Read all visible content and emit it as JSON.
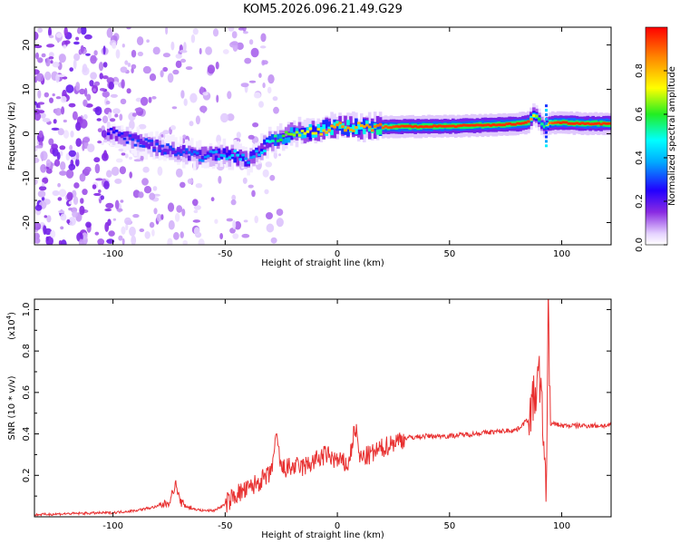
{
  "figure": {
    "title": "KOM5.2026.096.21.49.G29"
  },
  "chart_data": [
    {
      "type": "heatmap",
      "title": "KOM5.2026.096.21.49.G29",
      "xlabel": "Height of straight line (km)",
      "ylabel": "Frequency (Hz)",
      "xlim": [
        -135,
        122
      ],
      "ylim": [
        -25,
        24
      ],
      "x_ticks": [
        -100,
        -50,
        0,
        50,
        100
      ],
      "y_ticks": [
        -20,
        -10,
        0,
        10,
        20
      ],
      "colorbar": {
        "label": "Normalized spectral amplitude",
        "range": [
          0,
          1
        ],
        "ticks": [
          0.0,
          0.2,
          0.4,
          0.6,
          0.8
        ]
      },
      "ridge": {
        "description": "frequency of peak amplitude vs height",
        "x": [
          -100,
          -90,
          -80,
          -70,
          -60,
          -50,
          -45,
          -40,
          -35,
          -30,
          -25,
          -20,
          -10,
          0,
          10,
          20,
          30,
          50,
          70,
          80,
          85,
          88,
          90,
          92,
          95,
          100,
          110,
          122
        ],
        "y": [
          0,
          -1.5,
          -3,
          -4,
          -5,
          -4.5,
          -5,
          -6,
          -4,
          -2,
          -1,
          0,
          0.8,
          1.5,
          1.4,
          1.5,
          1.6,
          1.7,
          2.0,
          2.2,
          2.5,
          4.5,
          3.2,
          1.5,
          2.5,
          2.5,
          2.3,
          2.3
        ],
        "amplitude": [
          0.25,
          0.3,
          0.3,
          0.3,
          0.35,
          0.4,
          0.45,
          0.35,
          0.4,
          0.5,
          0.6,
          0.65,
          0.75,
          0.85,
          0.8,
          0.9,
          0.95,
          0.95,
          0.95,
          0.95,
          0.95,
          0.7,
          0.6,
          0.5,
          0.9,
          0.95,
          0.95,
          0.95
        ]
      }
    },
    {
      "type": "line",
      "xlabel": "Height of straight line (km)",
      "ylabel": "SNR (10 * v/v)",
      "y_scale_label": "(x10",
      "y_scale_exponent": "4",
      "xlim": [
        -135,
        122
      ],
      "ylim": [
        0,
        1.05
      ],
      "x_ticks": [
        -100,
        -50,
        0,
        50,
        100
      ],
      "y_ticks": [
        0.2,
        0.4,
        0.6,
        0.8,
        1.0
      ],
      "series": [
        {
          "name": "SNR",
          "color": "#e83030",
          "x": [
            -135,
            -120,
            -100,
            -90,
            -80,
            -75,
            -72,
            -70,
            -65,
            -60,
            -55,
            -50,
            -45,
            -40,
            -35,
            -30,
            -27,
            -25,
            -20,
            -15,
            -10,
            -5,
            0,
            5,
            8,
            10,
            15,
            20,
            25,
            30,
            40,
            50,
            60,
            70,
            80,
            85,
            88,
            90,
            92,
            93,
            94,
            95,
            97,
            100,
            110,
            122
          ],
          "values": [
            0.01,
            0.015,
            0.02,
            0.03,
            0.05,
            0.07,
            0.16,
            0.07,
            0.04,
            0.03,
            0.03,
            0.06,
            0.11,
            0.13,
            0.17,
            0.2,
            0.38,
            0.23,
            0.24,
            0.24,
            0.27,
            0.3,
            0.27,
            0.25,
            0.44,
            0.28,
            0.3,
            0.33,
            0.36,
            0.38,
            0.39,
            0.39,
            0.4,
            0.41,
            0.42,
            0.47,
            0.58,
            0.68,
            0.4,
            0.06,
            1.05,
            0.44,
            0.45,
            0.44,
            0.44,
            0.44
          ]
        }
      ]
    }
  ]
}
